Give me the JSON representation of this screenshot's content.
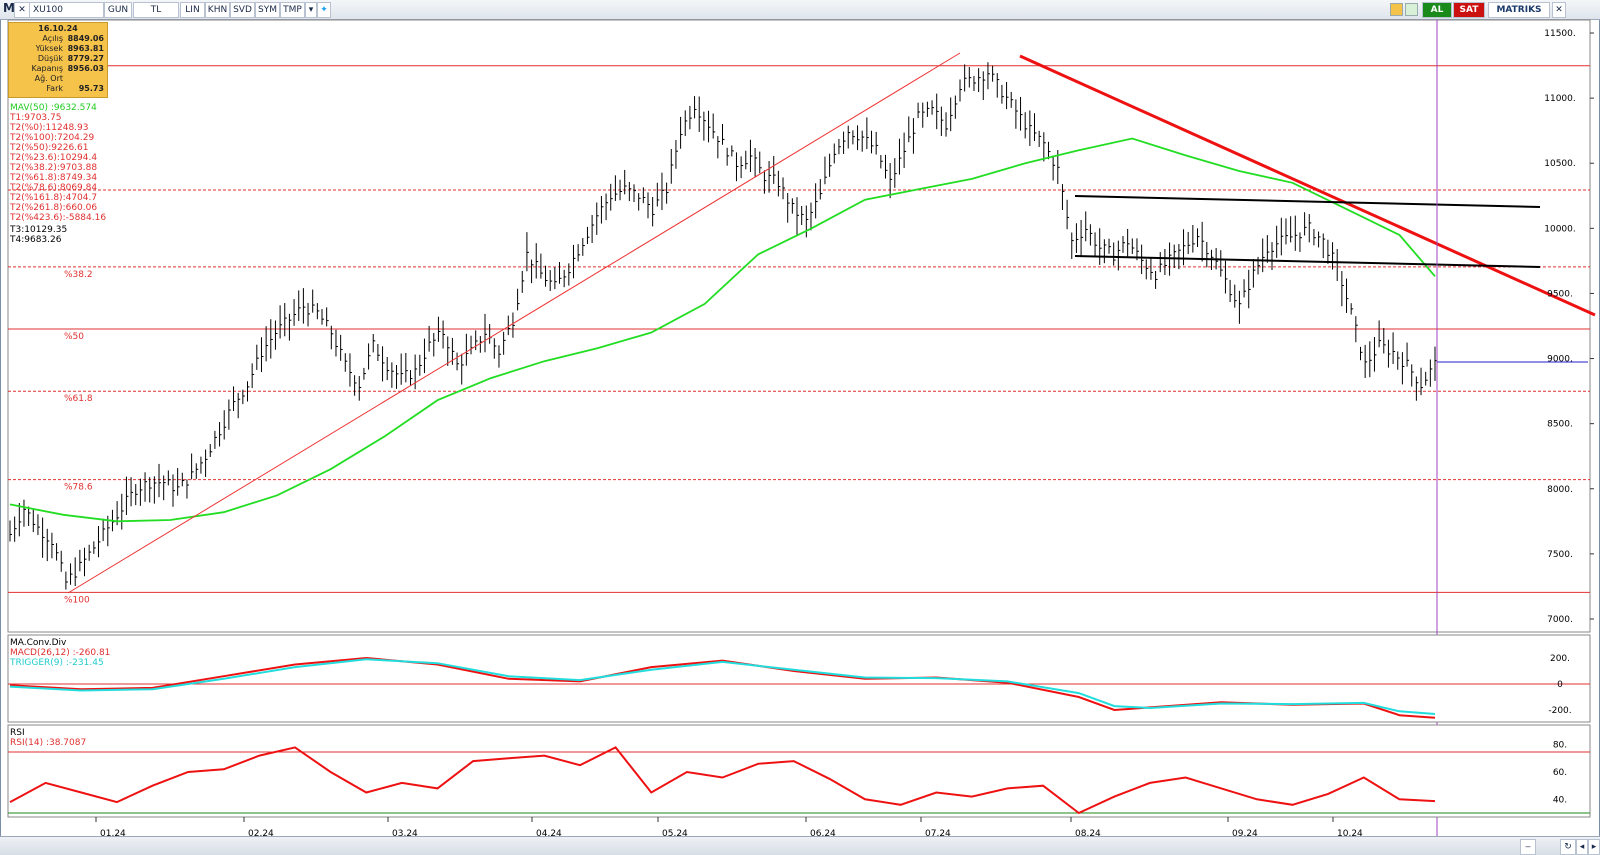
{
  "toolbar": {
    "logo": "M",
    "symbol": "XU100",
    "buttons": [
      "GUN",
      "TL",
      "LIN",
      "KHN",
      "SVD",
      "SYM",
      "TMP"
    ],
    "al_label": "AL",
    "sat_label": "SAT",
    "brand": "MATRIKS"
  },
  "info_box": {
    "date": "16.10.24",
    "rows": [
      {
        "label": "Açılış",
        "value": "8849.06"
      },
      {
        "label": "Yüksek",
        "value": "8963.81"
      },
      {
        "label": "Düşük",
        "value": "8779.27"
      },
      {
        "label": "Kapanış",
        "value": "8956.03"
      },
      {
        "label": "Ağ. Ort",
        "value": ""
      },
      {
        "label": "Fark",
        "value": "95.73"
      }
    ]
  },
  "indicators_text": {
    "mav": "MAV(50)      :9632.574",
    "lines": [
      "T1:9703.75",
      "T2(%0):11248.93",
      "T2(%100):7204.29",
      "T2(%50):9226.61",
      "T2(%23.6):10294.4",
      "T2(%38.2):9703.88",
      "T2(%61.8):8749.34",
      "T2(%78.6):8069.84",
      "T2(%161.8):4704.7",
      "T2(%261.8):660.06",
      "T2(%423.6):-5884.16"
    ],
    "t3": "T3:10129.35",
    "t4": "T4:9683.26"
  },
  "fib_labels": [
    "%38.2",
    "%50",
    "%61.8",
    "%78.6",
    "%100"
  ],
  "macd_panel": {
    "title": "MA.Conv.Div",
    "macd": "MACD(26,12)   :-260.81",
    "trigger": "TRIGGER(9)    :-231.45"
  },
  "rsi_panel": {
    "title": "RSI",
    "rsi": "RSI(14)      :38.7087"
  },
  "colors": {
    "price": "#000000",
    "mav": "#22dd22",
    "fib": "#e03030",
    "trend": "#ee1111",
    "channel": "#000000",
    "macd": "#ee1111",
    "trigger": "#22dddd",
    "rsi": "#ee1111",
    "cursor": "#a040c0",
    "info_bg": "#f5c24a",
    "lines_text": "#e03030",
    "mav_text": "#22cc22"
  },
  "chart_data": [
    {
      "type": "ohlc",
      "title": "XU100",
      "x_labels": [
        "01.24",
        "02.24",
        "03.24",
        "04.24",
        "05.24",
        "06.24",
        "07.24",
        "08.24",
        "09.24",
        "10.24"
      ],
      "ylim": [
        6900,
        11600
      ],
      "y_ticks": [
        7000,
        7500,
        8000,
        8500,
        9000,
        9500,
        10000,
        10500,
        11000,
        11500
      ],
      "y_tick_labels": [
        "7000.",
        "7500.",
        "8000.",
        "8500.",
        "9000.",
        "9500.",
        "10000.",
        "10500.",
        "11000.",
        "11500."
      ],
      "last_close": 8956.03,
      "close_path": [
        [
          0,
          7650
        ],
        [
          3,
          7850
        ],
        [
          6,
          7700
        ],
        [
          9,
          7600
        ],
        [
          12,
          7280
        ],
        [
          15,
          7400
        ],
        [
          18,
          7550
        ],
        [
          21,
          7700
        ],
        [
          24,
          7850
        ],
        [
          27,
          8000
        ],
        [
          30,
          8050
        ],
        [
          33,
          8050
        ],
        [
          36,
          8000
        ],
        [
          39,
          8100
        ],
        [
          42,
          8250
        ],
        [
          45,
          8450
        ],
        [
          48,
          8650
        ],
        [
          51,
          8800
        ],
        [
          54,
          9050
        ],
        [
          57,
          9200
        ],
        [
          60,
          9300
        ],
        [
          63,
          9400
        ],
        [
          66,
          9350
        ],
        [
          69,
          9200
        ],
        [
          72,
          8950
        ],
        [
          75,
          8800
        ],
        [
          78,
          9100
        ],
        [
          81,
          8950
        ],
        [
          84,
          8850
        ],
        [
          87,
          8900
        ],
        [
          90,
          9100
        ],
        [
          93,
          9200
        ],
        [
          96,
          8950
        ],
        [
          99,
          9050
        ],
        [
          102,
          9200
        ],
        [
          105,
          9050
        ],
        [
          108,
          9300
        ],
        [
          111,
          9800
        ],
        [
          114,
          9650
        ],
        [
          117,
          9550
        ],
        [
          120,
          9700
        ],
        [
          123,
          9900
        ],
        [
          126,
          10100
        ],
        [
          129,
          10250
        ],
        [
          132,
          10300
        ],
        [
          135,
          10250
        ],
        [
          138,
          10150
        ],
        [
          141,
          10300
        ],
        [
          144,
          10750
        ],
        [
          147,
          10950
        ],
        [
          150,
          10800
        ],
        [
          153,
          10650
        ],
        [
          156,
          10500
        ],
        [
          159,
          10550
        ],
        [
          162,
          10400
        ],
        [
          165,
          10350
        ],
        [
          168,
          10150
        ],
        [
          171,
          10050
        ],
        [
          174,
          10250
        ],
        [
          177,
          10600
        ],
        [
          180,
          10750
        ],
        [
          183,
          10700
        ],
        [
          186,
          10600
        ],
        [
          189,
          10350
        ],
        [
          192,
          10600
        ],
        [
          195,
          10850
        ],
        [
          198,
          10900
        ],
        [
          201,
          10800
        ],
        [
          204,
          11100
        ],
        [
          207,
          11150
        ],
        [
          210,
          11200
        ],
        [
          213,
          11050
        ],
        [
          216,
          10900
        ],
        [
          219,
          10750
        ],
        [
          222,
          10650
        ],
        [
          225,
          10450
        ],
        [
          228,
          9900
        ],
        [
          231,
          10000
        ],
        [
          234,
          9850
        ],
        [
          237,
          9800
        ],
        [
          240,
          9900
        ],
        [
          243,
          9750
        ],
        [
          246,
          9650
        ],
        [
          249,
          9750
        ],
        [
          252,
          9850
        ],
        [
          255,
          9950
        ],
        [
          258,
          9800
        ],
        [
          261,
          9600
        ],
        [
          264,
          9400
        ],
        [
          267,
          9650
        ],
        [
          270,
          9850
        ],
        [
          273,
          9900
        ],
        [
          276,
          9950
        ],
        [
          279,
          10000
        ],
        [
          282,
          9900
        ],
        [
          285,
          9700
        ],
        [
          288,
          9350
        ],
        [
          291,
          8950
        ],
        [
          294,
          9100
        ],
        [
          297,
          9050
        ],
        [
          300,
          8950
        ],
        [
          303,
          8800
        ],
        [
          306,
          8956
        ]
      ],
      "mav": [
        [
          0,
          7880
        ],
        [
          15,
          7800
        ],
        [
          30,
          7750
        ],
        [
          45,
          7760
        ],
        [
          60,
          7820
        ],
        [
          75,
          7950
        ],
        [
          90,
          8150
        ],
        [
          105,
          8400
        ],
        [
          120,
          8680
        ],
        [
          135,
          8850
        ],
        [
          150,
          8980
        ],
        [
          165,
          9080
        ],
        [
          180,
          9200
        ],
        [
          195,
          9420
        ],
        [
          210,
          9800
        ],
        [
          225,
          10000
        ],
        [
          240,
          10220
        ],
        [
          255,
          10300
        ],
        [
          270,
          10380
        ],
        [
          285,
          10500
        ],
        [
          300,
          10600
        ],
        [
          315,
          10690
        ],
        [
          330,
          10560
        ],
        [
          345,
          10440
        ],
        [
          360,
          10350
        ],
        [
          375,
          10150
        ],
        [
          390,
          9950
        ],
        [
          400,
          9632
        ]
      ],
      "fib_levels": [
        {
          "label": "%0",
          "value": 11248.93
        },
        {
          "label": "%23.6",
          "value": 10294.4
        },
        {
          "label": "%38.2",
          "value": 9703.88
        },
        {
          "label": "%50",
          "value": 9226.61
        },
        {
          "label": "%61.8",
          "value": 8749.34
        },
        {
          "label": "%78.6",
          "value": 8069.84
        },
        {
          "label": "%100",
          "value": 7204.29
        }
      ],
      "current_price_line": 8956
    },
    {
      "type": "line",
      "title": "MA.Conv.Div",
      "y_ticks": [
        -200,
        0,
        200
      ],
      "y_tick_labels": [
        "-200.",
        "0",
        "200."
      ],
      "series": [
        {
          "name": "MACD(26,12)",
          "last": -260.81
        },
        {
          "name": "TRIGGER(9)",
          "last": -231.45
        }
      ]
    },
    {
      "type": "line",
      "title": "RSI",
      "y_ticks": [
        40,
        60,
        80
      ],
      "y_tick_labels": [
        "40.",
        "60.",
        "80."
      ],
      "ylim": [
        30,
        90
      ],
      "series": [
        {
          "name": "RSI(14)",
          "last": 38.7087
        }
      ],
      "bands": [
        70,
        30
      ]
    }
  ]
}
